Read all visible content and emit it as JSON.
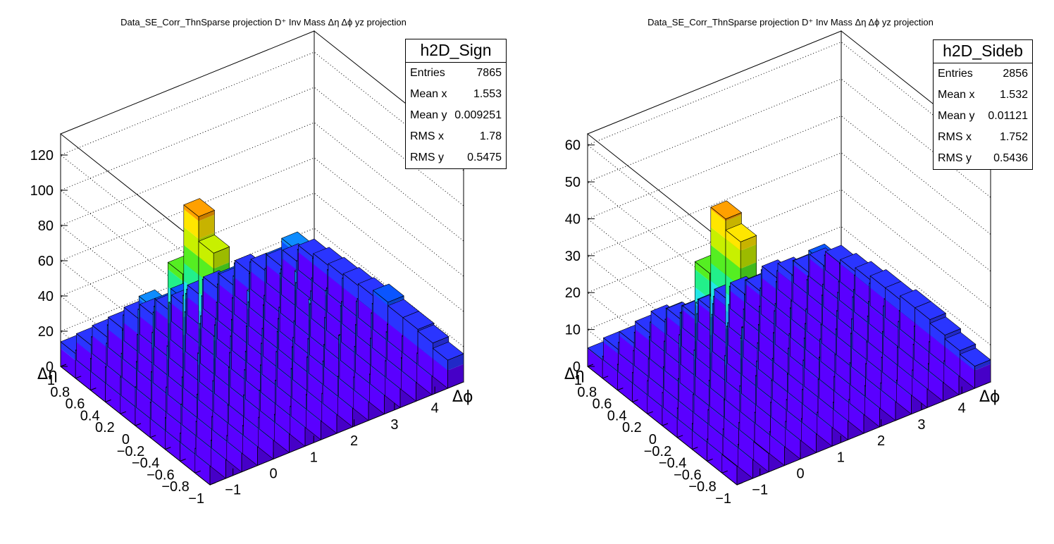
{
  "pads": [
    {
      "title": "Data_SE_Corr_ThnSparse projection  D⁺ Inv Mass Δη Δϕ yz projection",
      "stats": {
        "name": "h2D_Sign",
        "rows": [
          {
            "label": "Entries",
            "value": "7865"
          },
          {
            "label": "Mean x",
            "value": "1.553"
          },
          {
            "label": "Mean y",
            "value": "0.009251"
          },
          {
            "label": "RMS x",
            "value": "1.78"
          },
          {
            "label": "RMS y",
            "value": "0.5475"
          }
        ]
      }
    },
    {
      "title": "Data_SE_Corr_ThnSparse projection  D⁺ Inv Mass Δη Δϕ yz projection",
      "stats": {
        "name": "h2D_Sideb",
        "rows": [
          {
            "label": "Entries",
            "value": "2856"
          },
          {
            "label": "Mean x",
            "value": "1.532"
          },
          {
            "label": "Mean y",
            "value": "0.01121"
          },
          {
            "label": "RMS x",
            "value": "1.752"
          },
          {
            "label": "RMS y",
            "value": "0.5436"
          }
        ]
      }
    }
  ],
  "chart_data": [
    {
      "type": "lego",
      "title": "Data_SE_Corr_ThnSparse projection  D⁺ Inv Mass Δη Δϕ yz projection",
      "histogram": "h2D_Sign",
      "xlabel": "Δϕ",
      "ylabel": "Δη",
      "xlim": [
        -1.5708,
        4.7124
      ],
      "ylim": [
        -1,
        1
      ],
      "zlim": [
        0,
        132
      ],
      "xticks": [
        "−1",
        "0",
        "1",
        "2",
        "3",
        "4"
      ],
      "xtick_values": [
        -1,
        0,
        1,
        2,
        3,
        4
      ],
      "yticks": [
        "−1",
        "−0.8",
        "−0.6",
        "−0.4",
        "−0.2",
        "0",
        "0.2",
        "0.4",
        "0.6",
        "0.8",
        "1"
      ],
      "ytick_values": [
        -1,
        -0.8,
        -0.6,
        -0.4,
        -0.2,
        0,
        0.2,
        0.4,
        0.6,
        0.8,
        1
      ],
      "zticks": [
        "0",
        "20",
        "40",
        "60",
        "80",
        "100",
        "120"
      ],
      "ztick_values": [
        0,
        20,
        40,
        60,
        80,
        100,
        120
      ],
      "grid": true,
      "colormap": [
        "#5a00ff",
        "#2a35ff",
        "#0a55ff",
        "#0e8cff",
        "#1fb8ff",
        "#22e6e6",
        "#22f08a",
        "#55ee22",
        "#c8f000",
        "#ffe600",
        "#ffa000",
        "#ff5a00",
        "#f01010"
      ],
      "bins_x": 16,
      "bins_y": 10,
      "counts": [
        [
          14,
          15,
          14,
          16,
          17,
          15,
          16,
          19,
          16,
          22,
          18,
          16,
          20,
          18,
          17,
          16
        ],
        [
          16,
          19,
          18,
          21,
          23,
          22,
          24,
          27,
          30,
          24,
          35,
          25,
          26,
          26,
          20,
          19
        ],
        [
          18,
          22,
          24,
          28,
          32,
          27,
          26,
          30,
          29,
          30,
          23,
          25,
          27,
          30,
          20,
          20
        ],
        [
          20,
          25,
          27,
          37,
          43,
          30,
          27,
          28,
          31,
          24,
          42,
          28,
          31,
          30,
          25,
          20
        ],
        [
          22,
          27,
          38,
          63,
          90,
          39,
          29,
          31,
          26,
          28,
          23,
          29,
          33,
          23,
          21,
          22
        ],
        [
          21,
          26,
          39,
          75,
          104,
          33,
          32,
          28,
          41,
          29,
          24,
          41,
          26,
          24,
          26,
          19
        ],
        [
          20,
          24,
          31,
          40,
          42,
          33,
          27,
          31,
          30,
          24,
          24,
          33,
          24,
          23,
          24,
          18
        ],
        [
          18,
          23,
          27,
          35,
          33,
          31,
          33,
          28,
          31,
          32,
          30,
          29,
          25,
          26,
          24,
          17
        ],
        [
          16,
          20,
          23,
          25,
          32,
          27,
          29,
          25,
          27,
          27,
          29,
          26,
          27,
          32,
          22,
          16
        ],
        [
          14,
          15,
          16,
          17,
          19,
          17,
          16,
          15,
          17,
          18,
          16,
          20,
          17,
          16,
          15,
          14
        ]
      ]
    },
    {
      "type": "lego",
      "title": "Data_SE_Corr_ThnSparse projection  D⁺ Inv Mass Δη Δϕ yz projection",
      "histogram": "h2D_Sideb",
      "xlabel": "Δϕ",
      "ylabel": "Δη",
      "xlim": [
        -1.5708,
        4.7124
      ],
      "ylim": [
        -1,
        1
      ],
      "zlim": [
        0,
        63
      ],
      "xticks": [
        "−1",
        "0",
        "1",
        "2",
        "3",
        "4"
      ],
      "xtick_values": [
        -1,
        0,
        1,
        2,
        3,
        4
      ],
      "yticks": [
        "−1",
        "−0.8",
        "−0.6",
        "−0.4",
        "−0.2",
        "0",
        "0.2",
        "0.4",
        "0.6",
        "0.8",
        "1"
      ],
      "ytick_values": [
        -1,
        -0.8,
        -0.6,
        -0.4,
        -0.2,
        0,
        0.2,
        0.4,
        0.6,
        0.8,
        1
      ],
      "zticks": [
        "0",
        "10",
        "20",
        "30",
        "40",
        "50",
        "60"
      ],
      "ztick_values": [
        0,
        10,
        20,
        30,
        40,
        50,
        60
      ],
      "grid": true,
      "colormap": [
        "#5a00ff",
        "#2a35ff",
        "#0a55ff",
        "#0e8cff",
        "#1fb8ff",
        "#22e6e6",
        "#22f08a",
        "#55ee22",
        "#c8f000",
        "#ffe600",
        "#ffa000",
        "#ff5a00",
        "#f01010"
      ],
      "bins_x": 16,
      "bins_y": 10,
      "counts": [
        [
          5,
          6,
          5,
          6,
          7,
          6,
          6,
          7,
          6,
          8,
          7,
          6,
          7,
          7,
          6,
          6
        ],
        [
          6,
          7,
          7,
          8,
          9,
          8,
          9,
          10,
          9,
          11,
          9,
          9,
          10,
          9,
          8,
          7
        ],
        [
          7,
          9,
          10,
          12,
          13,
          10,
          10,
          12,
          11,
          10,
          14,
          10,
          11,
          12,
          9,
          8
        ],
        [
          8,
          10,
          12,
          17,
          20,
          12,
          11,
          12,
          13,
          11,
          12,
          13,
          12,
          13,
          10,
          9
        ],
        [
          9,
          11,
          17,
          30,
          46,
          18,
          12,
          13,
          11,
          12,
          10,
          12,
          14,
          11,
          10,
          9
        ],
        [
          9,
          11,
          18,
          36,
          49,
          15,
          13,
          12,
          14,
          13,
          11,
          13,
          12,
          11,
          11,
          8
        ],
        [
          8,
          10,
          13,
          19,
          20,
          15,
          11,
          13,
          12,
          11,
          10,
          14,
          11,
          10,
          10,
          8
        ],
        [
          7,
          9,
          11,
          14,
          14,
          12,
          13,
          11,
          12,
          12,
          12,
          12,
          10,
          11,
          10,
          7
        ],
        [
          6,
          8,
          9,
          10,
          12,
          11,
          11,
          10,
          11,
          11,
          12,
          10,
          11,
          12,
          9,
          6
        ],
        [
          5,
          6,
          6,
          7,
          8,
          7,
          6,
          6,
          7,
          7,
          6,
          8,
          7,
          6,
          6,
          5
        ]
      ]
    }
  ]
}
